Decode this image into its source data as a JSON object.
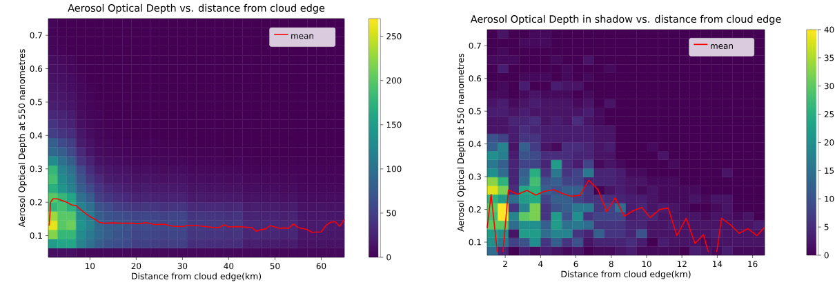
{
  "chart_data": [
    {
      "type": "heatmap",
      "title": "Aerosol Optical Depth vs. distance from cloud edge",
      "xlabel": "Distance from cloud edge(km)",
      "ylabel": "Aerosol Optical Depth at 550 nanometres",
      "xlim": [
        1,
        65
      ],
      "ylim": [
        0.035,
        0.75
      ],
      "xticks": [
        10,
        20,
        30,
        40,
        50,
        60
      ],
      "yticks": [
        0.1,
        0.2,
        0.3,
        0.4,
        0.5,
        0.6,
        0.7
      ],
      "clim": [
        0,
        270
      ],
      "cticks": [
        0,
        50,
        100,
        150,
        200,
        250
      ],
      "legend": "top right",
      "cells": [
        [
          3,
          0,
          0,
          0,
          0,
          0,
          0,
          0,
          0,
          0,
          0,
          0,
          0,
          0,
          0,
          0,
          0,
          0,
          0,
          0,
          0,
          0,
          0,
          0,
          0,
          0,
          0,
          0,
          0,
          0,
          0,
          0
        ],
        [
          2,
          0,
          0,
          0,
          0,
          0,
          0,
          0,
          0,
          0,
          0,
          0,
          0,
          0,
          0,
          0,
          0,
          0,
          0,
          0,
          0,
          0,
          0,
          0,
          null,
          null,
          null,
          null,
          null,
          null,
          null,
          0
        ],
        [
          3,
          1,
          0,
          0,
          0,
          0,
          0,
          0,
          0,
          0,
          0,
          0,
          0,
          0,
          0,
          0,
          0,
          0,
          0,
          0,
          0,
          0,
          0,
          0,
          null,
          null,
          null,
          null,
          null,
          null,
          null,
          0
        ],
        [
          4,
          2,
          0,
          0,
          0,
          0,
          0,
          0,
          0,
          0,
          0,
          0,
          0,
          0,
          0,
          0,
          0,
          0,
          0,
          0,
          0,
          0,
          0,
          0,
          0,
          0,
          0,
          0,
          0,
          0,
          0,
          0
        ],
        [
          8,
          6,
          4,
          0,
          0,
          0,
          0,
          0,
          0,
          0,
          0,
          0,
          0,
          0,
          0,
          0,
          0,
          0,
          0,
          0,
          0,
          0,
          0,
          0,
          0,
          0,
          0,
          0,
          0,
          0,
          0,
          0
        ],
        [
          10,
          8,
          5,
          1,
          0,
          0,
          0,
          0,
          0,
          0,
          0,
          0,
          0,
          0,
          0,
          0,
          0,
          0,
          0,
          0,
          0,
          0,
          0,
          0,
          0,
          0,
          0,
          0,
          0,
          0,
          0,
          0
        ],
        [
          12,
          10,
          8,
          3,
          0,
          0,
          0,
          0,
          0,
          0,
          0,
          0,
          0,
          0,
          0,
          0,
          0,
          0,
          0,
          0,
          0,
          0,
          0,
          0,
          0,
          0,
          0,
          0,
          0,
          0,
          0,
          0
        ],
        [
          15,
          12,
          9,
          4,
          1,
          0,
          0,
          0,
          0,
          0,
          0,
          0,
          0,
          0,
          0,
          0,
          0,
          0,
          0,
          0,
          0,
          0,
          0,
          0,
          0,
          0,
          0,
          0,
          0,
          0,
          0,
          0
        ],
        [
          18,
          15,
          12,
          5,
          2,
          0,
          0,
          0,
          0,
          0,
          0,
          0,
          0,
          0,
          0,
          0,
          0,
          0,
          0,
          0,
          0,
          0,
          0,
          0,
          0,
          0,
          0,
          0,
          0,
          0,
          0,
          0
        ],
        [
          22,
          18,
          14,
          6,
          3,
          1,
          0,
          0,
          0,
          0,
          0,
          0,
          0,
          0,
          0,
          0,
          0,
          0,
          0,
          0,
          0,
          0,
          0,
          0,
          0,
          0,
          0,
          0,
          0,
          0,
          0,
          0
        ],
        [
          30,
          25,
          20,
          8,
          4,
          2,
          0,
          0,
          0,
          0,
          0,
          0,
          0,
          0,
          0,
          0,
          0,
          0,
          0,
          0,
          0,
          0,
          0,
          0,
          0,
          0,
          0,
          0,
          0,
          0,
          0,
          0
        ],
        [
          40,
          30,
          25,
          10,
          6,
          3,
          1,
          0,
          0,
          0,
          0,
          0,
          0,
          0,
          0,
          0,
          0,
          0,
          0,
          0,
          0,
          0,
          0,
          0,
          0,
          0,
          0,
          0,
          0,
          0,
          0,
          0
        ],
        [
          50,
          40,
          35,
          15,
          8,
          4,
          2,
          1,
          1,
          0,
          0,
          0,
          0,
          0,
          0,
          0,
          0,
          0,
          0,
          0,
          0,
          0,
          0,
          0,
          0,
          0,
          0,
          0,
          0,
          0,
          0,
          0
        ],
        [
          80,
          60,
          50,
          20,
          12,
          6,
          4,
          2,
          2,
          1,
          1,
          2,
          1,
          1,
          1,
          0,
          0,
          0,
          0,
          0,
          0,
          0,
          0,
          0,
          0,
          0,
          0,
          0,
          0,
          0,
          0,
          0
        ],
        [
          90,
          80,
          60,
          30,
          15,
          8,
          6,
          4,
          3,
          2,
          3,
          2,
          2,
          2,
          1,
          1,
          1,
          1,
          1,
          0,
          1,
          0,
          0,
          0,
          0,
          0,
          0,
          0,
          0,
          0,
          0,
          0
        ],
        [
          130,
          100,
          80,
          40,
          25,
          12,
          10,
          8,
          6,
          4,
          5,
          4,
          4,
          3,
          4,
          2,
          2,
          2,
          2,
          1,
          2,
          1,
          1,
          1,
          1,
          1,
          1,
          1,
          1,
          1,
          1,
          1
        ],
        [
          180,
          120,
          100,
          60,
          35,
          20,
          15,
          12,
          12,
          8,
          9,
          8,
          7,
          8,
          8,
          5,
          6,
          5,
          5,
          4,
          5,
          2,
          2,
          3,
          2,
          2,
          2,
          2,
          2,
          2,
          2,
          2
        ],
        [
          190,
          130,
          110,
          70,
          45,
          30,
          20,
          18,
          15,
          12,
          13,
          12,
          11,
          12,
          12,
          8,
          9,
          8,
          8,
          7,
          8,
          5,
          6,
          5,
          5,
          4,
          5,
          3,
          3,
          3,
          3,
          3
        ],
        [
          170,
          140,
          120,
          80,
          60,
          40,
          30,
          25,
          22,
          18,
          20,
          18,
          17,
          18,
          18,
          12,
          13,
          12,
          12,
          11,
          12,
          8,
          9,
          8,
          8,
          7,
          8,
          5,
          5,
          5,
          5,
          5
        ],
        [
          200,
          180,
          160,
          100,
          80,
          50,
          40,
          35,
          30,
          25,
          27,
          25,
          24,
          25,
          25,
          18,
          19,
          18,
          18,
          17,
          18,
          12,
          13,
          12,
          12,
          11,
          12,
          8,
          8,
          8,
          8,
          8
        ],
        [
          180,
          190,
          170,
          120,
          100,
          70,
          60,
          50,
          45,
          40,
          42,
          40,
          38,
          40,
          40,
          30,
          31,
          30,
          30,
          28,
          30,
          20,
          22,
          20,
          20,
          18,
          20,
          12,
          12,
          13,
          12,
          12
        ],
        [
          230,
          200,
          200,
          130,
          110,
          80,
          70,
          65,
          60,
          55,
          57,
          55,
          52,
          55,
          55,
          40,
          42,
          40,
          40,
          38,
          40,
          25,
          27,
          25,
          25,
          23,
          25,
          15,
          15,
          16,
          15,
          15
        ],
        [
          260,
          200,
          210,
          140,
          120,
          90,
          80,
          75,
          70,
          60,
          62,
          60,
          58,
          60,
          60,
          45,
          47,
          45,
          45,
          43,
          45,
          30,
          32,
          30,
          30,
          28,
          30,
          18,
          18,
          19,
          18,
          18
        ],
        [
          220,
          180,
          180,
          130,
          110,
          90,
          80,
          70,
          65,
          55,
          57,
          55,
          52,
          55,
          55,
          40,
          42,
          40,
          40,
          38,
          40,
          28,
          30,
          28,
          28,
          26,
          28,
          15,
          15,
          16,
          15,
          15
        ],
        [
          150,
          160,
          160,
          120,
          100,
          80,
          70,
          65,
          60,
          50,
          52,
          50,
          48,
          50,
          50,
          35,
          37,
          35,
          35,
          33,
          35,
          20,
          22,
          20,
          20,
          18,
          20,
          12,
          12,
          13,
          12,
          12
        ],
        [
          10,
          10,
          10,
          5,
          5,
          5,
          5,
          5,
          5,
          5,
          5,
          5,
          5,
          5,
          5,
          5,
          5,
          5,
          5,
          5,
          5,
          5,
          5,
          5,
          5,
          5,
          5,
          5,
          5,
          5,
          5,
          5
        ]
      ],
      "series": [
        {
          "type": "line",
          "name": "mean",
          "color": "#ff0000",
          "x": [
            1.2,
            1.5,
            2,
            3,
            4,
            5,
            6,
            7,
            8,
            9,
            10,
            11,
            12,
            13,
            15,
            17,
            19,
            21,
            22,
            24,
            26,
            28,
            30,
            31,
            33,
            35,
            37,
            38,
            39,
            40,
            42,
            44,
            45,
            46,
            47,
            48,
            49,
            51,
            52,
            53,
            54,
            55,
            57,
            58,
            60,
            61,
            62,
            63,
            64,
            65
          ],
          "values": [
            0.13,
            0.2,
            0.21,
            0.21,
            0.205,
            0.2,
            0.192,
            0.19,
            0.178,
            0.167,
            0.157,
            0.15,
            0.14,
            0.137,
            0.138,
            0.137,
            0.137,
            0.136,
            0.139,
            0.133,
            0.134,
            0.128,
            0.127,
            0.13,
            0.13,
            0.127,
            0.124,
            0.125,
            0.132,
            0.126,
            0.127,
            0.125,
            0.124,
            0.113,
            0.118,
            0.12,
            0.13,
            0.122,
            0.123,
            0.122,
            0.135,
            0.124,
            0.118,
            0.11,
            0.111,
            0.13,
            0.14,
            0.142,
            0.128,
            0.148
          ]
        }
      ]
    },
    {
      "type": "heatmap",
      "title": "Aerosol Optical Depth in shadow vs. distance from cloud edge",
      "xlabel": "Distance from cloud edge(km)",
      "ylabel": "Aerosol Optical Depth at 550 nanometres",
      "xlim": [
        0.98,
        16.68
      ],
      "ylim": [
        0.06,
        0.749
      ],
      "xticks": [
        2,
        4,
        6,
        8,
        10,
        12,
        14,
        16
      ],
      "yticks": [
        0.1,
        0.2,
        0.3,
        0.4,
        0.5,
        0.6,
        0.7
      ],
      "clim": [
        0,
        40
      ],
      "cticks": [
        0,
        5,
        10,
        15,
        20,
        25,
        30,
        35,
        40
      ],
      "legend": "top right",
      "cells": [
        [
          0,
          2,
          0,
          0,
          1,
          1,
          0,
          0,
          0,
          0,
          0,
          0,
          0,
          0,
          0,
          0,
          0,
          0,
          0,
          0,
          0,
          0,
          0,
          0,
          0,
          0
        ],
        [
          0,
          0,
          0,
          1,
          1,
          1,
          0,
          0,
          0,
          0,
          0,
          0,
          0,
          0,
          0,
          0,
          0,
          0,
          0,
          null,
          null,
          null,
          null,
          null,
          null,
          0
        ],
        [
          0,
          1,
          0,
          0,
          0,
          0,
          0,
          0,
          0,
          0,
          0,
          0,
          0,
          0,
          0,
          0,
          0,
          0,
          0,
          null,
          null,
          null,
          null,
          null,
          null,
          0
        ],
        [
          1,
          1,
          1,
          0,
          0,
          0,
          1,
          0,
          0,
          2,
          0,
          0,
          0,
          0,
          0,
          0,
          0,
          0,
          0,
          0,
          0,
          0,
          0,
          0,
          0,
          0
        ],
        [
          0,
          3,
          0,
          0,
          0,
          0,
          0,
          1,
          0,
          0,
          0,
          1,
          0,
          0,
          0,
          0,
          0,
          0,
          0,
          0,
          0,
          0,
          0,
          0,
          0,
          0
        ],
        [
          0,
          0,
          0,
          1,
          1,
          1,
          0,
          1,
          0,
          1,
          0,
          0,
          0,
          0,
          0,
          0,
          0,
          0,
          0,
          0,
          0,
          0,
          0,
          0,
          0,
          0
        ],
        [
          0,
          1,
          0,
          3,
          0,
          0,
          3,
          2,
          2,
          0,
          0,
          0,
          0,
          0,
          0,
          0,
          0,
          0,
          0,
          0,
          0,
          0,
          0,
          0,
          0,
          0
        ],
        [
          1,
          1,
          0,
          1,
          2,
          1,
          1,
          1,
          0,
          1,
          0,
          0,
          0,
          0,
          0,
          0,
          0,
          0,
          0,
          0,
          0,
          0,
          0,
          0,
          0,
          0
        ],
        [
          2,
          3,
          1,
          2,
          3,
          2,
          2,
          2,
          1,
          2,
          0,
          2,
          0,
          0,
          0,
          0,
          0,
          0,
          0,
          0,
          0,
          0,
          0,
          0,
          0,
          0
        ],
        [
          3,
          3,
          2,
          3,
          2,
          2,
          2,
          2,
          2,
          3,
          1,
          0,
          0,
          0,
          0,
          0,
          0,
          0,
          0,
          0,
          0,
          0,
          0,
          0,
          0,
          0
        ],
        [
          2,
          2,
          4,
          4,
          5,
          2,
          3,
          2,
          5,
          2,
          1,
          0,
          0,
          0,
          0,
          0,
          0,
          0,
          0,
          0,
          0,
          0,
          0,
          0,
          0,
          0
        ],
        [
          2,
          2,
          3,
          5,
          4,
          3,
          3,
          3,
          3,
          3,
          2,
          2,
          0,
          0,
          0,
          0,
          0,
          0,
          0,
          0,
          0,
          0,
          0,
          0,
          0,
          0
        ],
        [
          10,
          8,
          3,
          6,
          6,
          3,
          3,
          3,
          3,
          3,
          2,
          2,
          0,
          0,
          0,
          0,
          0,
          0,
          0,
          0,
          0,
          0,
          0,
          0,
          0,
          0
        ],
        [
          12,
          18,
          2,
          12,
          7,
          2,
          1,
          5,
          5,
          4,
          2,
          3,
          0,
          0,
          0,
          1,
          0,
          0,
          0,
          0,
          0,
          0,
          0,
          0,
          0,
          0
        ],
        [
          20,
          17,
          3,
          10,
          9,
          5,
          5,
          5,
          4,
          4,
          2,
          2,
          0,
          0,
          0,
          0,
          2,
          0,
          0,
          0,
          0,
          0,
          0,
          0,
          0,
          0
        ],
        [
          16,
          12,
          4,
          8,
          8,
          4,
          22,
          5,
          3,
          8,
          1,
          2,
          1,
          0,
          0,
          0,
          0,
          1,
          0,
          0,
          0,
          0,
          0,
          0,
          0,
          0
        ],
        [
          20,
          14,
          4,
          12,
          25,
          6,
          16,
          6,
          8,
          16,
          4,
          4,
          3,
          1,
          1,
          0,
          0,
          0,
          0,
          0,
          0,
          0,
          2,
          0,
          0,
          0
        ],
        [
          33,
          26,
          4,
          14,
          28,
          10,
          12,
          8,
          8,
          4,
          4,
          4,
          3,
          2,
          2,
          1,
          1,
          1,
          0,
          0,
          0,
          0,
          0,
          0,
          0,
          0
        ],
        [
          38,
          32,
          5,
          24,
          26,
          12,
          10,
          12,
          12,
          6,
          0,
          2,
          3,
          2,
          1,
          2,
          1,
          1,
          1,
          1,
          0,
          0,
          0,
          0,
          0,
          0
        ],
        [
          26,
          22,
          14,
          22,
          24,
          8,
          12,
          12,
          8,
          6,
          6,
          5,
          4,
          3,
          3,
          2,
          1,
          1,
          1,
          2,
          1,
          2,
          2,
          0,
          0,
          0
        ],
        [
          30,
          40,
          6,
          18,
          32,
          6,
          10,
          12,
          16,
          16,
          6,
          8,
          14,
          3,
          4,
          2,
          3,
          2,
          1,
          0,
          0,
          1,
          2,
          0,
          0,
          0
        ],
        [
          28,
          40,
          18,
          30,
          32,
          6,
          22,
          10,
          20,
          6,
          8,
          8,
          8,
          3,
          4,
          4,
          2,
          2,
          2,
          2,
          1,
          2,
          2,
          1,
          2,
          0
        ],
        [
          30,
          30,
          14,
          20,
          20,
          12,
          22,
          15,
          16,
          14,
          6,
          6,
          6,
          4,
          4,
          2,
          2,
          3,
          2,
          2,
          2,
          2,
          2,
          2,
          2,
          3
        ],
        [
          22,
          20,
          2,
          22,
          22,
          14,
          18,
          18,
          6,
          4,
          12,
          6,
          6,
          4,
          10,
          2,
          2,
          2,
          2,
          2,
          2,
          3,
          2,
          2,
          2,
          2
        ],
        [
          20,
          16,
          8,
          10,
          20,
          6,
          12,
          6,
          10,
          2,
          4,
          4,
          4,
          5,
          3,
          0,
          3,
          2,
          2,
          2,
          1,
          2,
          2,
          2,
          2,
          2
        ],
        [
          14,
          4,
          0,
          3,
          1,
          3,
          2,
          1,
          2,
          0,
          1,
          1,
          2,
          3,
          1,
          1,
          1,
          1,
          0,
          3,
          2,
          1,
          3,
          1,
          1,
          1
        ]
      ],
      "series": [
        {
          "type": "line",
          "name": "mean",
          "color": "#ff0000",
          "x": [
            0.98,
            1.2,
            1.55,
            1.72,
            1.87,
            2.18,
            2.71,
            3.23,
            3.73,
            4.21,
            4.73,
            5.26,
            5.74,
            6.23,
            6.73,
            7.24,
            7.74,
            8.23,
            8.74,
            9.24,
            9.73,
            10.21,
            10.74,
            11.23,
            11.71,
            12.24,
            12.74,
            13.22,
            13.49,
            13.7,
            13.97,
            14.24,
            14.75,
            15.24,
            15.74,
            16.25,
            16.67
          ],
          "values": [
            0.143,
            0.246,
            0.07,
            null,
            0.07,
            0.259,
            0.246,
            0.258,
            0.244,
            0.255,
            0.26,
            0.248,
            0.24,
            0.243,
            0.289,
            0.261,
            0.193,
            0.235,
            0.179,
            0.196,
            0.206,
            0.175,
            0.2,
            0.204,
            0.12,
            0.173,
            0.096,
            0.123,
            0.07,
            null,
            0.07,
            0.173,
            0.153,
            0.127,
            0.141,
            0.12,
            0.145
          ]
        }
      ]
    }
  ]
}
